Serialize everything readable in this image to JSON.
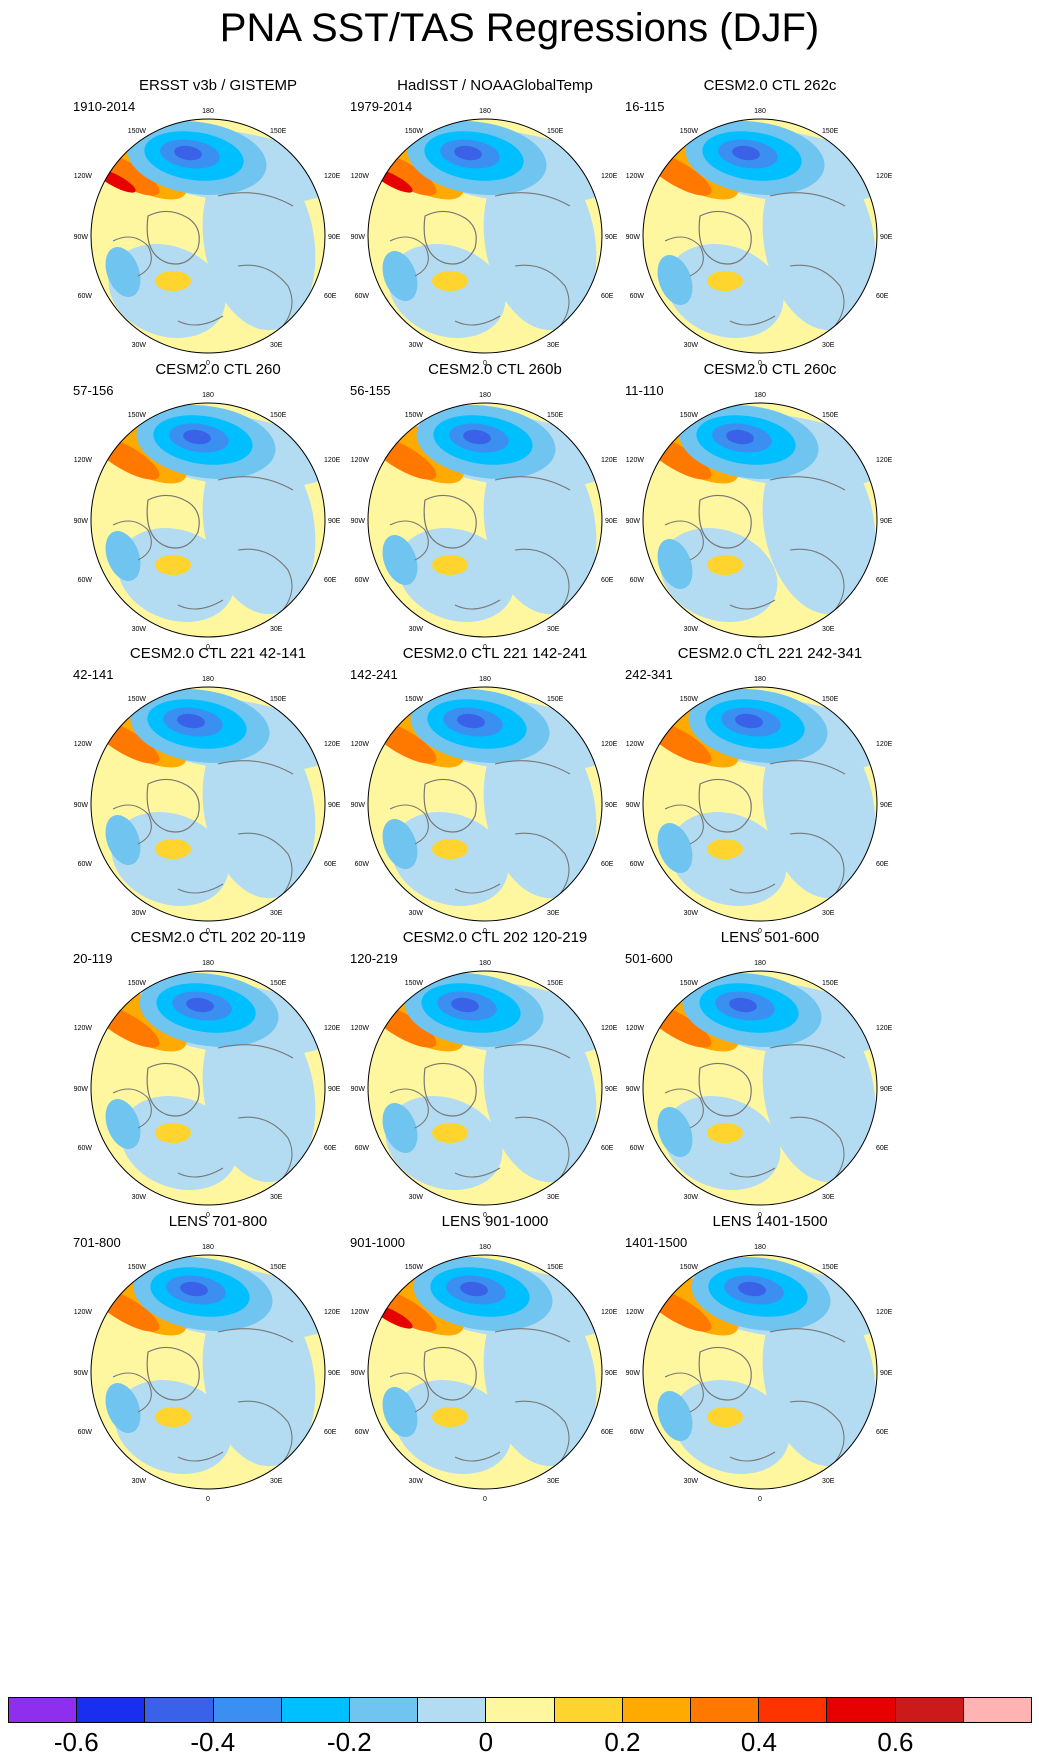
{
  "figure": {
    "title": "PNA SST/TAS Regressions (DJF)"
  },
  "map_labels": {
    "lon_180": "180",
    "lon_150W": "150W",
    "lon_150E": "150E",
    "lon_120W": "120W",
    "lon_120E": "120E",
    "lon_90W": "90W",
    "lon_90E": "90E",
    "lon_60W": "60W",
    "lon_60E": "60E",
    "lon_30W": "30W",
    "lon_30E": "30E",
    "lon_0": "0"
  },
  "chart_data": {
    "type": "map-panel-grid",
    "projection": "north polar stereographic",
    "panels": [
      {
        "title": "ERSST v3b / GISTEMP",
        "period": "1910-2014",
        "variant": 0
      },
      {
        "title": "HadISST / NOAAGlobalTemp",
        "period": "1979-2014",
        "variant": 1
      },
      {
        "title": "CESM2.0 CTL 262c",
        "period": "16-115",
        "variant": 2
      },
      {
        "title": "CESM2.0 CTL 260",
        "period": "57-156",
        "variant": 3
      },
      {
        "title": "CESM2.0 CTL 260b",
        "period": "56-155",
        "variant": 4
      },
      {
        "title": "CESM2.0 CTL 260c",
        "period": "11-110",
        "variant": 5
      },
      {
        "title": "CESM2.0 CTL 221 42-141",
        "period": "42-141",
        "variant": 6
      },
      {
        "title": "CESM2.0 CTL 221 142-241",
        "period": "142-241",
        "variant": 7
      },
      {
        "title": "CESM2.0 CTL 221 242-341",
        "period": "242-341",
        "variant": 8
      },
      {
        "title": "CESM2.0 CTL 202 20-119",
        "period": "20-119",
        "variant": 9
      },
      {
        "title": "CESM2.0 CTL 202 120-219",
        "period": "120-219",
        "variant": 10
      },
      {
        "title": "LENS 501-600",
        "period": "501-600",
        "variant": 11
      },
      {
        "title": "LENS 701-800",
        "period": "701-800",
        "variant": 12
      },
      {
        "title": "LENS 901-1000",
        "period": "901-1000",
        "variant": 13
      },
      {
        "title": "LENS 1401-1500",
        "period": "1401-1500",
        "variant": 14
      }
    ],
    "colorbar": {
      "colors": [
        "#8f2eef",
        "#1a2ef0",
        "#3a62e8",
        "#3a8ff0",
        "#00bfff",
        "#70c4f0",
        "#b3dcf2",
        "#fff6a0",
        "#ffd42e",
        "#ffaa00",
        "#ff7800",
        "#ff3300",
        "#e60000",
        "#cc1a1a",
        "#ffb3b3"
      ],
      "labels": [
        "-0.6",
        "-0.4",
        "-0.2",
        "0",
        "0.2",
        "0.4",
        "0.6"
      ],
      "label_boundaries": [
        1,
        3,
        5,
        7,
        9,
        11,
        13
      ]
    }
  }
}
